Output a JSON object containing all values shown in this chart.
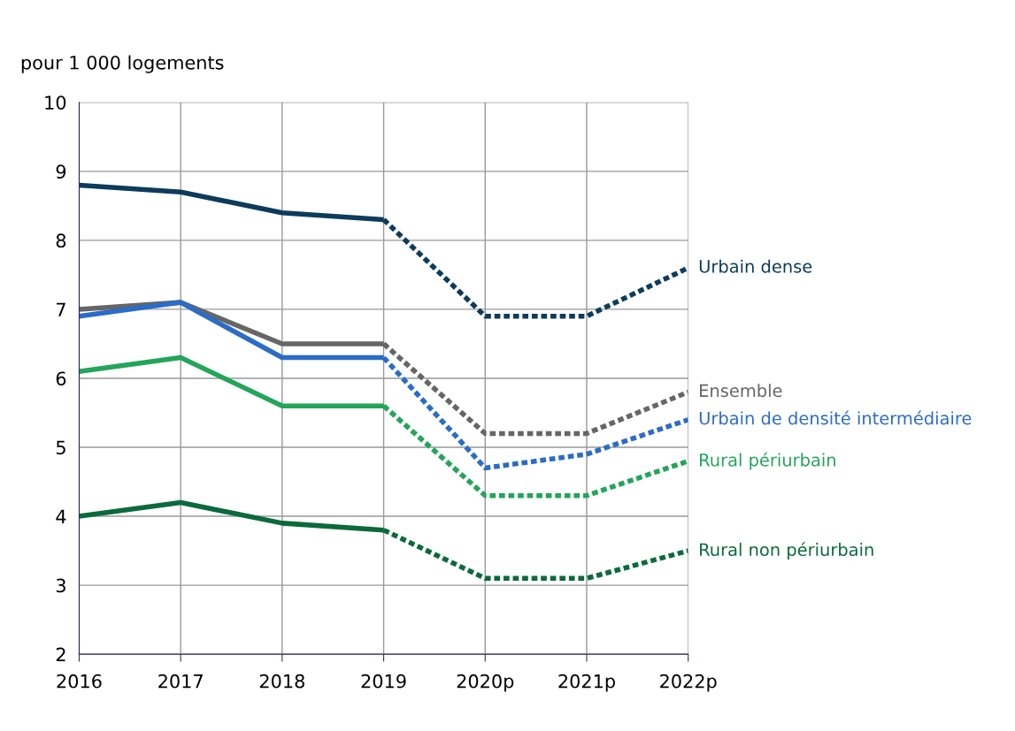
{
  "chart_data": {
    "type": "line",
    "ylabel": "pour 1 000 logements",
    "categories": [
      "2016",
      "2017",
      "2018",
      "2019",
      "2020p",
      "2021p",
      "2022p"
    ],
    "ylim": [
      2,
      10
    ],
    "yticks": [
      2,
      3,
      4,
      5,
      6,
      7,
      8,
      9,
      10
    ],
    "grid": true,
    "legend": false,
    "marker": "none",
    "series": [
      {
        "color": "#0d3b5c",
        "line_style": "solid",
        "values": [
          8.8,
          8.7,
          8.4,
          8.3,
          null,
          null,
          null
        ]
      },
      {
        "name": "Urbain dense",
        "color": "#0d3b5c",
        "line_style": "dotted",
        "values": [
          null,
          null,
          null,
          8.3,
          6.9,
          6.9,
          7.6
        ]
      },
      {
        "color": "#666666",
        "line_style": "solid",
        "values": [
          7.0,
          7.1,
          6.5,
          6.5,
          null,
          null,
          null
        ]
      },
      {
        "name": "Ensemble",
        "color": "#666666",
        "line_style": "dotted",
        "values": [
          null,
          null,
          null,
          6.5,
          5.2,
          5.2,
          5.8
        ]
      },
      {
        "color": "#2b6cc8",
        "line_style": "solid",
        "values": [
          6.9,
          7.1,
          6.3,
          6.3,
          null,
          null,
          null
        ]
      },
      {
        "name": "Urbain de densité intermédiaire",
        "color": "#2b6cc8",
        "line_style": "dotted",
        "values": [
          null,
          null,
          null,
          6.3,
          4.7,
          4.9,
          5.4
        ]
      },
      {
        "color": "#23a55a",
        "line_style": "solid",
        "values": [
          6.1,
          6.3,
          5.6,
          5.6,
          null,
          null,
          null
        ]
      },
      {
        "name": "Rural périurbain",
        "color": "#23a55a",
        "line_style": "dotted",
        "values": [
          null,
          null,
          null,
          5.6,
          4.3,
          4.3,
          4.8
        ]
      },
      {
        "color": "#0b6a3c",
        "line_style": "solid",
        "values": [
          4.0,
          4.2,
          3.9,
          3.8,
          null,
          null,
          null
        ]
      },
      {
        "name": "Rural non périurbain",
        "color": "#0b6a3c",
        "line_style": "dotted",
        "values": [
          null,
          null,
          null,
          3.8,
          3.1,
          3.1,
          3.5
        ]
      }
    ]
  }
}
